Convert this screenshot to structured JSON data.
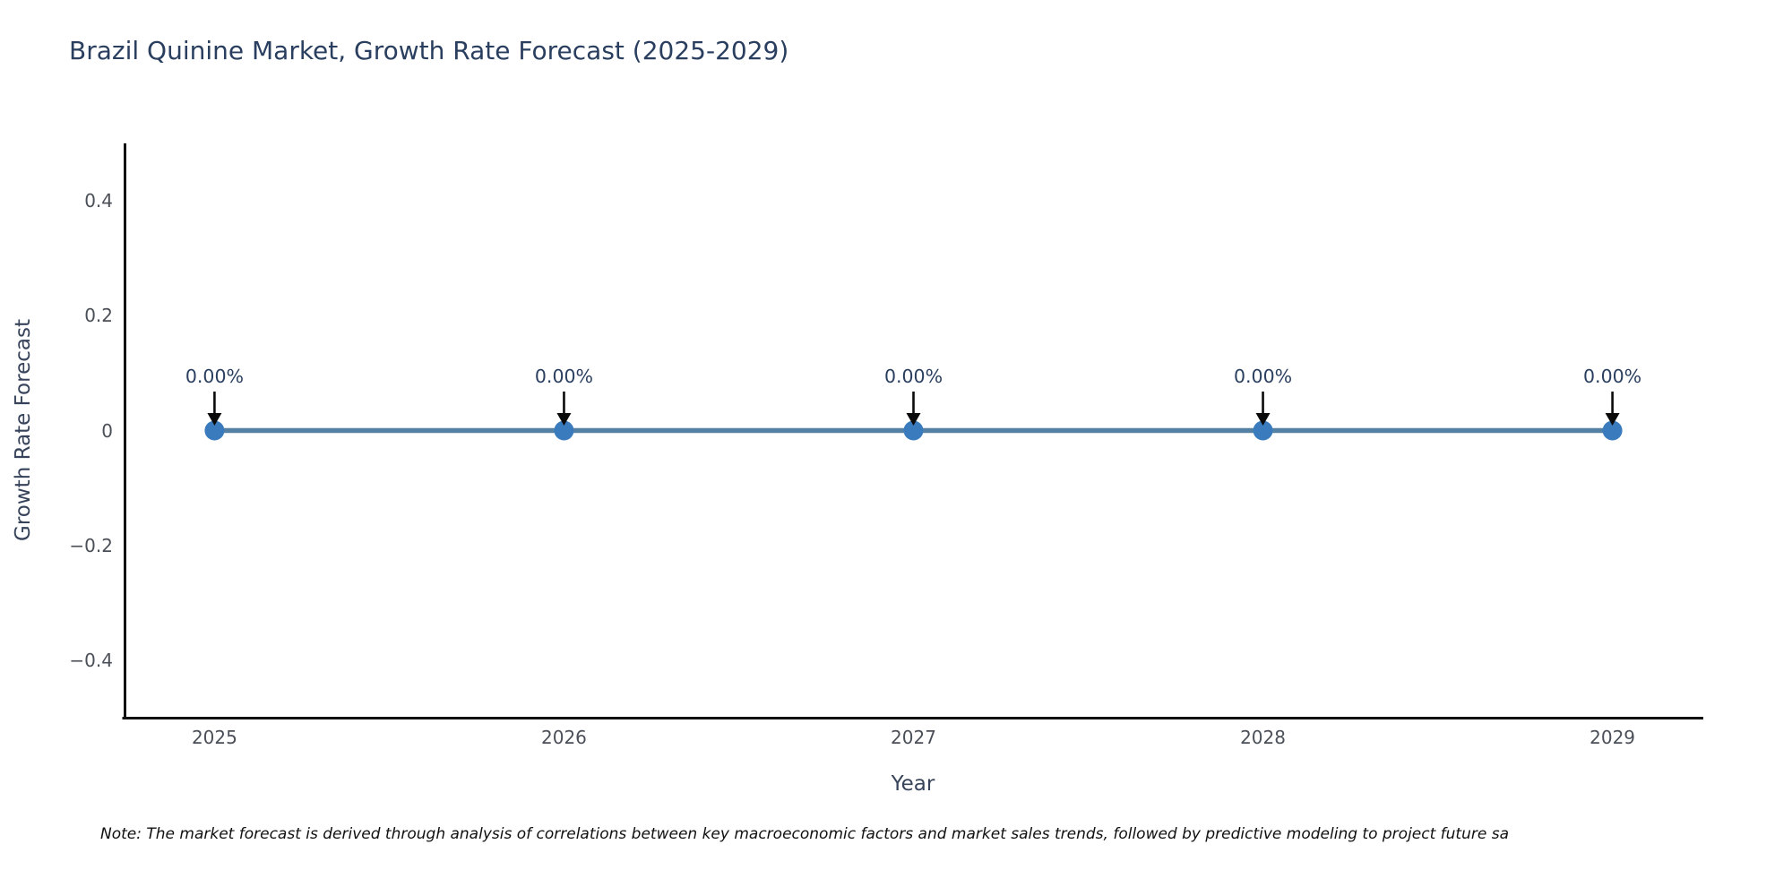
{
  "title": "Brazil Quinine Market, Growth Rate Forecast (2025-2029)",
  "note": "Note: The market forecast is derived through analysis of correlations between key macroeconomic factors and market sales trends, followed by predictive modeling to project future sa",
  "chart_data": {
    "type": "line",
    "title": "Brazil Quinine Market, Growth Rate Forecast (2025-2029)",
    "xlabel": "Year",
    "ylabel": "Growth Rate Forecast",
    "x": [
      2025,
      2026,
      2027,
      2028,
      2029
    ],
    "series": [
      {
        "name": "Growth Rate Forecast",
        "values": [
          0,
          0,
          0,
          0,
          0
        ]
      }
    ],
    "point_labels": [
      "0.00%",
      "0.00%",
      "0.00%",
      "0.00%",
      "0.00%"
    ],
    "xtick_labels": [
      "2025",
      "2026",
      "2027",
      "2028",
      "2029"
    ],
    "yticks": [
      0.4,
      0.2,
      0,
      -0.2,
      -0.4
    ],
    "ytick_labels": [
      "0.4",
      "0.2",
      "0",
      "−0.2",
      "−0.4"
    ],
    "xlim": [
      2024.74,
      2029.26
    ],
    "ylim": [
      -0.5,
      0.5
    ],
    "grid": false,
    "legend_position": "none",
    "colors": {
      "line": "#5480a3",
      "marker": "#3a7bbd",
      "arrow": "#0a0a0a",
      "annotation_text": "#2a3f5f",
      "tick_text": "#4b5058",
      "axis_title_text": "#36435a",
      "title_text": "#2a3f5f",
      "spine": "#111111",
      "background": "#ffffff"
    }
  }
}
